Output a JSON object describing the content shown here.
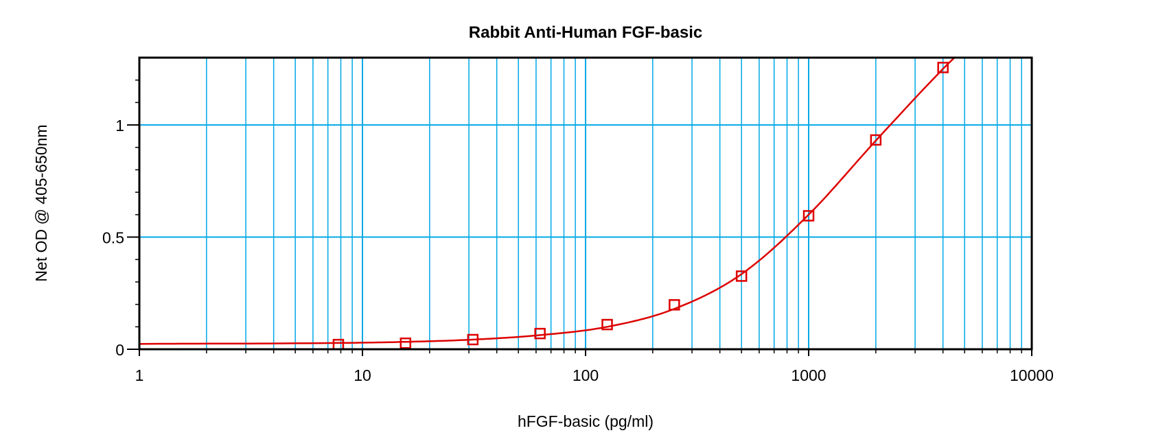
{
  "chart_data": {
    "type": "scatter",
    "title": "Rabbit Anti-Human FGF-basic",
    "xlabel": "hFGF-basic (pg/ml)",
    "ylabel": "Net OD @ 405-650nm",
    "xscale": "log",
    "xlim": [
      1,
      10000
    ],
    "ylim": [
      0,
      1.3
    ],
    "x_ticks": [
      1,
      10,
      100,
      1000,
      10000
    ],
    "x_tick_labels": [
      "1",
      "10",
      "100",
      "1000",
      "10000"
    ],
    "y_ticks": [
      0,
      0.5,
      1
    ],
    "y_tick_labels": [
      "0",
      "0.5",
      "1"
    ],
    "grid": true,
    "colors": {
      "grid": "#00a8e6",
      "series": "#dd0000",
      "axes": "#000000"
    },
    "series": [
      {
        "marker": "open-square",
        "x": [
          7.8,
          15.6,
          31.25,
          62.5,
          125,
          250,
          500,
          1000,
          2000,
          4000
        ],
        "y": [
          0.021,
          0.027,
          0.043,
          0.07,
          0.11,
          0.198,
          0.326,
          0.595,
          0.933,
          1.256
        ]
      }
    ],
    "fit_curve": {
      "x": [
        1,
        7.8,
        15.6,
        31.25,
        62.5,
        125,
        250,
        500,
        1000,
        2000,
        4000,
        4500
      ],
      "y": [
        0.024,
        0.028,
        0.033,
        0.043,
        0.063,
        0.1,
        0.18,
        0.335,
        0.6,
        0.93,
        1.25,
        1.3
      ]
    }
  }
}
